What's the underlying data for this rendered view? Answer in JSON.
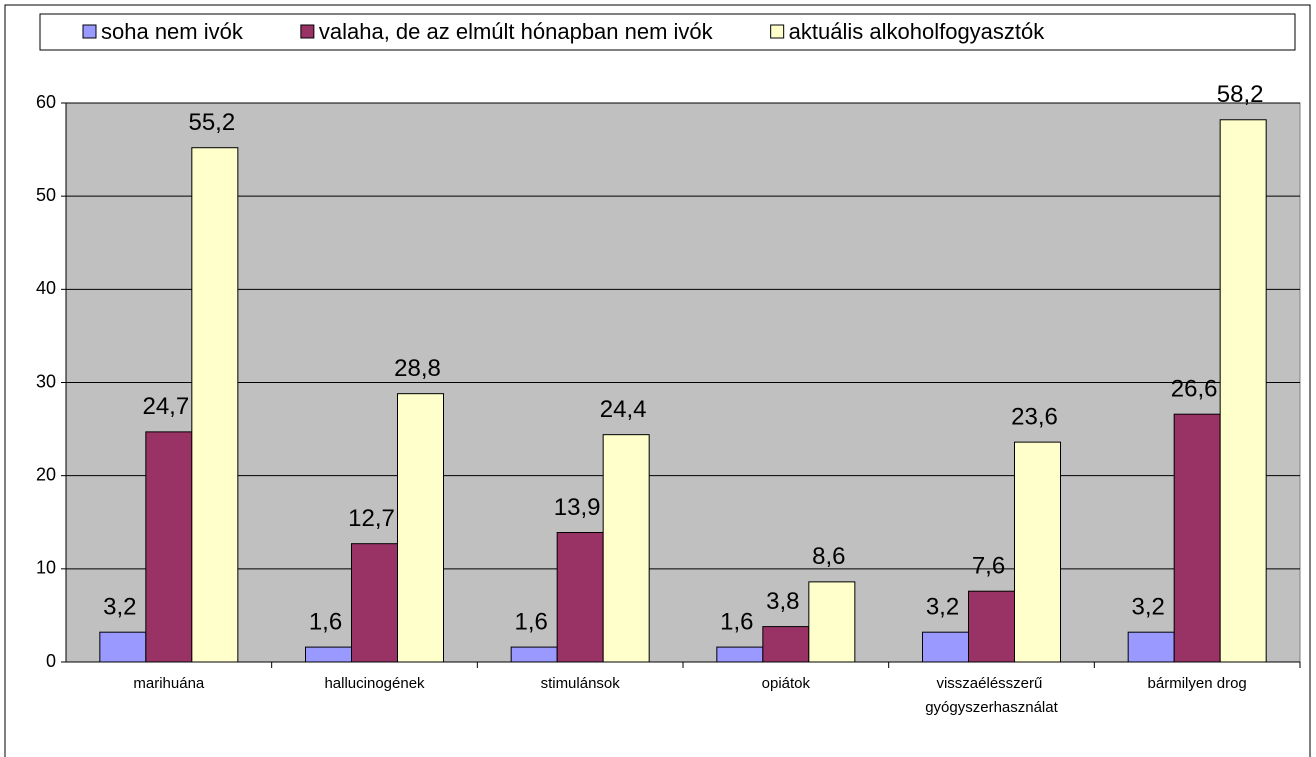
{
  "chart_data": {
    "type": "bar",
    "categories": [
      "marihuána",
      "hallucinogének",
      "stimulánsok",
      "opiátok",
      "visszaélésszerű gyógyszerhasználat",
      "bármilyen drog"
    ],
    "series": [
      {
        "name": "soha nem ivók",
        "color": "#9999ff",
        "values": [
          3.2,
          1.6,
          1.6,
          1.6,
          3.2,
          3.2
        ],
        "value_labels": [
          "3,2",
          "1,6",
          "1,6",
          "1,6",
          "3,2",
          "3,2"
        ]
      },
      {
        "name": "valaha, de az elmúlt hónapban nem ivók",
        "color": "#993366",
        "values": [
          24.7,
          12.7,
          13.9,
          3.8,
          7.6,
          26.6
        ],
        "value_labels": [
          "24,7",
          "12,7",
          "13,9",
          "3,8",
          "7,6",
          "26,6"
        ]
      },
      {
        "name": "aktuális alkoholfogyasztók",
        "color": "#ffffcc",
        "values": [
          55.2,
          28.8,
          24.4,
          8.6,
          23.6,
          58.2
        ],
        "value_labels": [
          "55,2",
          "28,8",
          "24,4",
          "8,6",
          "23,6",
          "58,2"
        ]
      }
    ],
    "ylim": [
      0,
      60
    ],
    "yticks": [
      0,
      10,
      20,
      30,
      40,
      50,
      60
    ],
    "grid": true,
    "legend": "top",
    "plot_background": "#c0c0c0"
  }
}
